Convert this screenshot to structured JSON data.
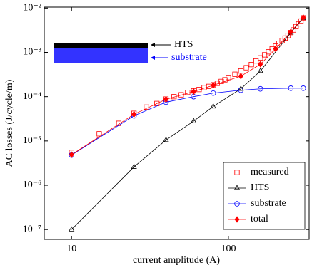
{
  "chart_data": {
    "type": "line",
    "xlabel": "current amplitude (A)",
    "ylabel": "AC losses (J/cycle/m)",
    "xscale": "log",
    "yscale": "log",
    "xlim": [
      6.7,
      327
    ],
    "ylim": [
      6e-08,
      0.0105
    ],
    "xticks": [
      10,
      100
    ],
    "yticks": [
      {
        "value": 1e-07,
        "label": "10⁻⁷"
      },
      {
        "value": 1e-06,
        "label": "10⁻⁶"
      },
      {
        "value": 1e-05,
        "label": "10⁻⁵"
      },
      {
        "value": 0.0001,
        "label": "10⁻⁴"
      },
      {
        "value": 0.001,
        "label": "10⁻³"
      },
      {
        "value": 0.01,
        "label": "10⁻²"
      }
    ],
    "legend": "lower right",
    "annotations": [
      "HTS",
      "substrate"
    ],
    "series": [
      {
        "name": "measured",
        "color": "#ff0000",
        "marker": "square",
        "line": false,
        "x": [
          10,
          15,
          20,
          25,
          30,
          35,
          40,
          45,
          50,
          55,
          60,
          65,
          70,
          75,
          80,
          85,
          90,
          95,
          100,
          110,
          120,
          130,
          140,
          150,
          160,
          170,
          180,
          190,
          200,
          210,
          220,
          230,
          240,
          250,
          260,
          270,
          280,
          290,
          300
        ],
        "values": [
          5.5e-06,
          1.45e-05,
          2.5e-05,
          4.2e-05,
          5.8e-05,
          7e-05,
          8.8e-05,
          0.0001,
          0.00011,
          0.000125,
          0.000135,
          0.000145,
          0.00016,
          0.00017,
          0.000185,
          0.0002,
          0.00022,
          0.00024,
          0.00027,
          0.00032,
          0.00038,
          0.00045,
          0.00053,
          0.00064,
          0.00075,
          0.00088,
          0.00103,
          0.0012,
          0.00138,
          0.0016,
          0.00185,
          0.0021,
          0.0024,
          0.0028,
          0.0032,
          0.0038,
          0.0044,
          0.0051,
          0.006
        ]
      },
      {
        "name": "HTS",
        "color": "#000000",
        "marker": "triangle",
        "line": true,
        "x": [
          10,
          25,
          40,
          60,
          80,
          120,
          160,
          250,
          300
        ],
        "values": [
          1e-07,
          2.6e-06,
          1.05e-05,
          2.8e-05,
          6e-05,
          0.00015,
          0.00038,
          0.0028,
          0.006
        ]
      },
      {
        "name": "substrate",
        "color": "#0000ff",
        "marker": "circle",
        "line": true,
        "x": [
          10,
          25,
          40,
          60,
          80,
          120,
          160,
          250,
          300
        ],
        "values": [
          4.8e-06,
          3.7e-05,
          7.5e-05,
          0.0001,
          0.00012,
          0.00014,
          0.00015,
          0.000155,
          0.000155
        ]
      },
      {
        "name": "total",
        "color": "#ff0000",
        "marker": "diamond",
        "line": true,
        "x": [
          10,
          25,
          40,
          60,
          80,
          120,
          160,
          200,
          250,
          300
        ],
        "values": [
          4.9e-06,
          4e-05,
          8.7e-05,
          0.00013,
          0.00018,
          0.00029,
          0.00054,
          0.0012,
          0.0029,
          0.0061
        ]
      }
    ]
  }
}
